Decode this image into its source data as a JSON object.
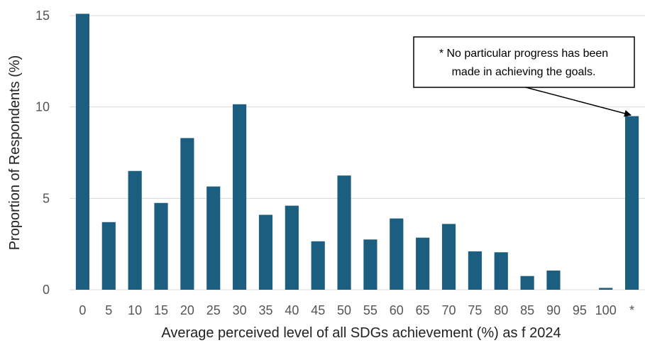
{
  "chart_data": {
    "type": "bar",
    "categories": [
      "0",
      "5",
      "10",
      "15",
      "20",
      "25",
      "30",
      "35",
      "40",
      "45",
      "50",
      "55",
      "60",
      "65",
      "70",
      "75",
      "80",
      "85",
      "90",
      "95",
      "100",
      "*"
    ],
    "values": [
      15.1,
      3.7,
      6.5,
      4.75,
      8.3,
      5.65,
      10.15,
      4.1,
      4.6,
      2.65,
      6.25,
      2.75,
      3.9,
      2.85,
      3.6,
      2.1,
      2.05,
      0.75,
      1.05,
      0,
      0.1,
      9.5
    ],
    "xlabel": "Average perceived level of all SDGs achievement (%) as f 2024",
    "ylabel": "Proportion of Respondents (%)",
    "ylim": [
      0,
      15
    ],
    "yticks": [
      0,
      5,
      10,
      15
    ],
    "grid": true,
    "bar_color": "#1b5e80",
    "annotation": {
      "lines": [
        "* No particular progress has been",
        "made in achieving the goals."
      ]
    }
  }
}
